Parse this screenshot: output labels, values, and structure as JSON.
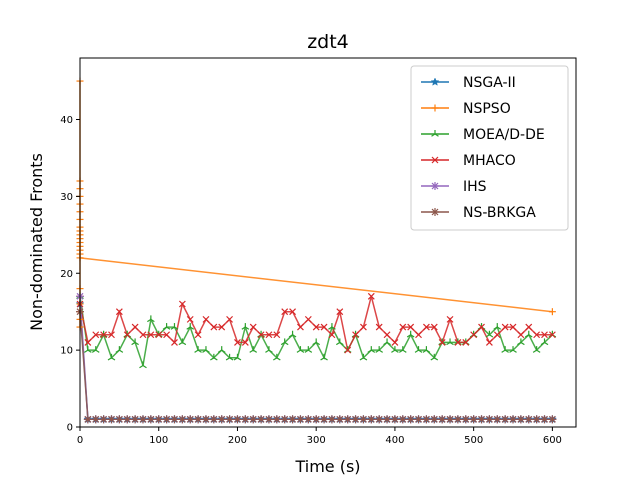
{
  "chart_data": {
    "type": "line",
    "title": "zdt4",
    "xlabel": "Time (s)",
    "ylabel": "Non-dominated Fronts",
    "xlim": [
      0,
      630
    ],
    "ylim": [
      0,
      48
    ],
    "xticks": [
      0,
      100,
      200,
      300,
      400,
      500,
      600
    ],
    "yticks": [
      0,
      10,
      20,
      30,
      40
    ],
    "grid": false,
    "legend_position": "top-right",
    "series": [
      {
        "name": "NSGA-II",
        "color": "#1f77b4",
        "marker": "star",
        "x": [
          0,
          10,
          20,
          30,
          40,
          50,
          60,
          70,
          80,
          90,
          100,
          110,
          120,
          130,
          140,
          150,
          160,
          170,
          180,
          190,
          200,
          210,
          220,
          230,
          240,
          250,
          260,
          270,
          280,
          290,
          300,
          310,
          320,
          330,
          340,
          350,
          360,
          370,
          380,
          390,
          400,
          410,
          420,
          430,
          440,
          450,
          460,
          470,
          480,
          490,
          500,
          510,
          520,
          530,
          540,
          550,
          560,
          570,
          580,
          590,
          600
        ],
        "y": [
          16,
          1,
          1,
          1,
          1,
          1,
          1,
          1,
          1,
          1,
          1,
          1,
          1,
          1,
          1,
          1,
          1,
          1,
          1,
          1,
          1,
          1,
          1,
          1,
          1,
          1,
          1,
          1,
          1,
          1,
          1,
          1,
          1,
          1,
          1,
          1,
          1,
          1,
          1,
          1,
          1,
          1,
          1,
          1,
          1,
          1,
          1,
          1,
          1,
          1,
          1,
          1,
          1,
          1,
          1,
          1,
          1,
          1,
          1,
          1,
          1
        ]
      },
      {
        "name": "NSPSO",
        "color": "#ff7f0e",
        "marker": "plus",
        "x": [
          0,
          0,
          0,
          0,
          0,
          0,
          0,
          0,
          0,
          0,
          0,
          0,
          0,
          0,
          0,
          0,
          0,
          0,
          0,
          0,
          0,
          0,
          600
        ],
        "y": [
          45,
          32,
          31,
          30,
          29,
          28,
          27,
          26,
          25.5,
          25,
          24.5,
          24,
          23.5,
          23,
          22.5,
          18,
          17,
          16,
          15,
          14,
          13,
          22,
          15
        ]
      },
      {
        "name": "MOEA/D-DE",
        "color": "#2ca02c",
        "marker": "tri",
        "x": [
          0,
          10,
          20,
          30,
          40,
          50,
          60,
          70,
          80,
          90,
          100,
          110,
          120,
          130,
          140,
          150,
          160,
          170,
          180,
          190,
          200,
          210,
          220,
          230,
          240,
          250,
          260,
          270,
          280,
          290,
          300,
          310,
          320,
          330,
          340,
          350,
          360,
          370,
          380,
          390,
          400,
          410,
          420,
          430,
          440,
          450,
          460,
          470,
          480,
          490,
          500,
          510,
          520,
          530,
          540,
          550,
          560,
          570,
          580,
          590,
          600
        ],
        "y": [
          17,
          10,
          10,
          12,
          9,
          10,
          12,
          11,
          8,
          14,
          12,
          13,
          13,
          11,
          13,
          10,
          10,
          9,
          10,
          9,
          9,
          13,
          10,
          12,
          10,
          9,
          11,
          12,
          10,
          10,
          11,
          9,
          13,
          11,
          10,
          12,
          9,
          10,
          10,
          11,
          10,
          10,
          12,
          10,
          10,
          9,
          11,
          11,
          11,
          11,
          12,
          13,
          12,
          13,
          10,
          10,
          11,
          12,
          10,
          11,
          12
        ]
      },
      {
        "name": "MHACO",
        "color": "#d62728",
        "marker": "x",
        "x": [
          0,
          10,
          20,
          30,
          40,
          50,
          60,
          70,
          80,
          90,
          100,
          110,
          120,
          130,
          140,
          150,
          160,
          170,
          180,
          190,
          200,
          210,
          220,
          230,
          240,
          250,
          260,
          270,
          280,
          290,
          300,
          310,
          320,
          330,
          340,
          350,
          360,
          370,
          380,
          390,
          400,
          410,
          420,
          430,
          440,
          450,
          460,
          470,
          480,
          490,
          500,
          510,
          520,
          530,
          540,
          550,
          560,
          570,
          580,
          590,
          600
        ],
        "y": [
          16,
          11,
          12,
          12,
          12,
          15,
          12,
          13,
          12,
          12,
          12,
          12,
          11,
          16,
          14,
          12,
          14,
          13,
          13,
          14,
          11,
          11,
          13,
          12,
          12,
          12,
          15,
          15,
          13,
          14,
          13,
          13,
          12,
          15,
          10,
          12,
          13,
          17,
          13,
          12,
          11,
          13,
          13,
          12,
          13,
          13,
          11,
          14,
          11,
          11,
          12,
          13,
          11,
          12,
          13,
          13,
          12,
          13,
          12,
          12,
          12
        ]
      },
      {
        "name": "IHS",
        "color": "#9467bd",
        "marker": "asterisk",
        "x": [
          0,
          10,
          20,
          30,
          40,
          50,
          60,
          70,
          80,
          90,
          100,
          110,
          120,
          130,
          140,
          150,
          160,
          170,
          180,
          190,
          200,
          210,
          220,
          230,
          240,
          250,
          260,
          270,
          280,
          290,
          300,
          310,
          320,
          330,
          340,
          350,
          360,
          370,
          380,
          390,
          400,
          410,
          420,
          430,
          440,
          450,
          460,
          470,
          480,
          490,
          500,
          510,
          520,
          530,
          540,
          550,
          560,
          570,
          580,
          590,
          600
        ],
        "y": [
          17,
          1,
          1,
          1,
          1,
          1,
          1,
          1,
          1,
          1,
          1,
          1,
          1,
          1,
          1,
          1,
          1,
          1,
          1,
          1,
          1,
          1,
          1,
          1,
          1,
          1,
          1,
          1,
          1,
          1,
          1,
          1,
          1,
          1,
          1,
          1,
          1,
          1,
          1,
          1,
          1,
          1,
          1,
          1,
          1,
          1,
          1,
          1,
          1,
          1,
          1,
          1,
          1,
          1,
          1,
          1,
          1,
          1,
          1,
          1,
          1
        ]
      },
      {
        "name": "NS-BRKGA",
        "color": "#8c564b",
        "marker": "asterisk",
        "x": [
          0,
          10,
          20,
          30,
          40,
          50,
          60,
          70,
          80,
          90,
          100,
          110,
          120,
          130,
          140,
          150,
          160,
          170,
          180,
          190,
          200,
          210,
          220,
          230,
          240,
          250,
          260,
          270,
          280,
          290,
          300,
          310,
          320,
          330,
          340,
          350,
          360,
          370,
          380,
          390,
          400,
          410,
          420,
          430,
          440,
          450,
          460,
          470,
          480,
          490,
          500,
          510,
          520,
          530,
          540,
          550,
          560,
          570,
          580,
          590,
          600
        ],
        "y": [
          15,
          1,
          1,
          1,
          1,
          1,
          1,
          1,
          1,
          1,
          1,
          1,
          1,
          1,
          1,
          1,
          1,
          1,
          1,
          1,
          1,
          1,
          1,
          1,
          1,
          1,
          1,
          1,
          1,
          1,
          1,
          1,
          1,
          1,
          1,
          1,
          1,
          1,
          1,
          1,
          1,
          1,
          1,
          1,
          1,
          1,
          1,
          1,
          1,
          1,
          1,
          1,
          1,
          1,
          1,
          1,
          1,
          1,
          1,
          1,
          1
        ]
      }
    ]
  }
}
